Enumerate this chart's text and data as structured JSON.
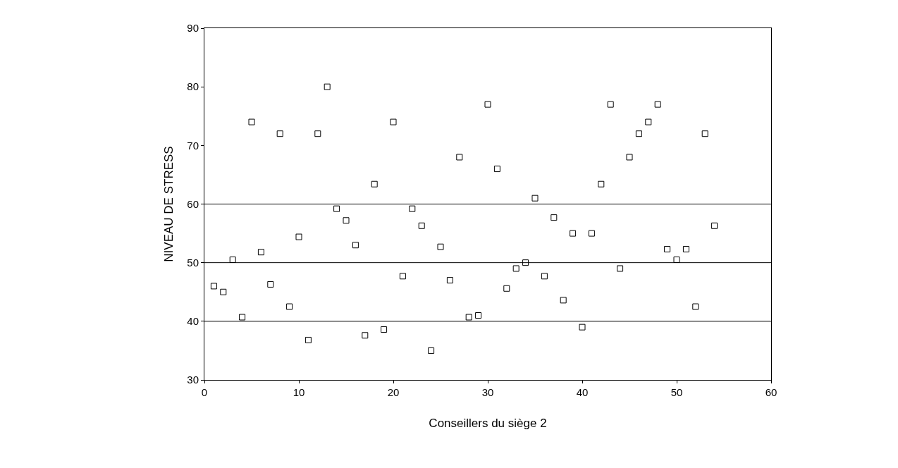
{
  "chart_data": {
    "type": "scatter",
    "xlabel": "Conseillers du siège 2",
    "ylabel": "NIVEAU DE STRESS",
    "x": [
      1,
      2,
      3,
      4,
      5,
      6,
      7,
      8,
      9,
      10,
      11,
      12,
      13,
      14,
      15,
      16,
      17,
      18,
      19,
      20,
      21,
      22,
      23,
      24,
      25,
      26,
      27,
      28,
      29,
      30,
      31,
      32,
      33,
      34,
      35,
      36,
      37,
      38,
      39,
      40,
      41,
      42,
      43,
      44,
      45,
      46,
      47,
      48,
      49,
      50,
      51,
      52,
      53,
      54
    ],
    "values": [
      46,
      45,
      50.5,
      40.7,
      74,
      51.8,
      46.3,
      72,
      42.5,
      54.4,
      36.8,
      72,
      80,
      59.2,
      57.2,
      53,
      37.6,
      63.4,
      38.6,
      74,
      47.7,
      59.2,
      56.3,
      35,
      52.7,
      47,
      68,
      40.7,
      41,
      77,
      66,
      45.6,
      49,
      50,
      61,
      47.7,
      57.7,
      43.6,
      55,
      39,
      55,
      63.4,
      77,
      49,
      68,
      72,
      74,
      77,
      52.3,
      50.5,
      52.3,
      42.5,
      72,
      56.3
    ],
    "color": "#000000",
    "marker": "square",
    "xlim": [
      0,
      60
    ],
    "xticks": [
      0,
      10,
      20,
      30,
      40,
      50,
      60
    ],
    "ylim": [
      30,
      90
    ],
    "yticks": [
      30,
      40,
      50,
      60,
      70,
      80,
      90
    ],
    "legend": false,
    "ref_lines": [
      {
        "axis": "y",
        "value": 40
      },
      {
        "axis": "y",
        "value": 50
      },
      {
        "axis": "y",
        "value": 60
      }
    ]
  }
}
